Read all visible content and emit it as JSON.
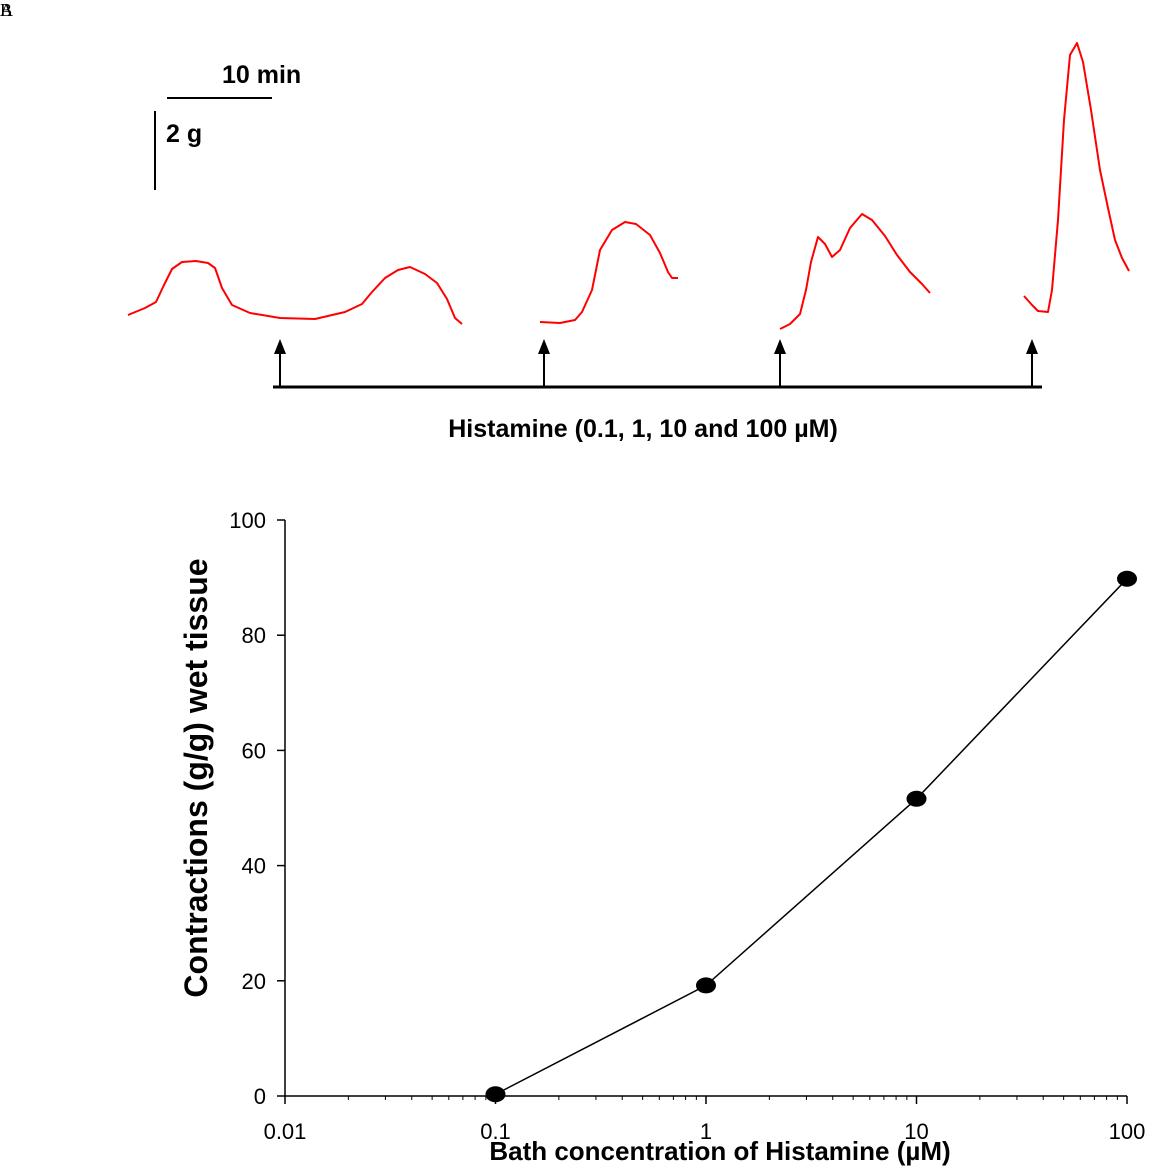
{
  "panels": {
    "a": "A",
    "b": "B"
  },
  "panel_a": {
    "scale_time_label": "10 min",
    "scale_force_label": "2 g",
    "treatment_label": "Histamine (0.1, 1, 10 and 100 µM)",
    "trace_color": "#ff0000",
    "arrow_count": 4
  },
  "chart_data": {
    "type": "line",
    "title": "",
    "xlabel": "Bath concentration of Histamine (µM)",
    "ylabel": "Contractions (g/g) wet tissue",
    "x_scale": "log",
    "xlim": [
      0.01,
      100
    ],
    "ylim": [
      0,
      100
    ],
    "x_ticks": [
      0.01,
      0.1,
      1,
      10,
      100
    ],
    "x_tick_labels": [
      "0.01",
      "0.1",
      "1",
      "10",
      "100"
    ],
    "y_ticks": [
      0,
      20,
      40,
      60,
      80,
      100
    ],
    "y_tick_labels": [
      "0",
      "20",
      "40",
      "60",
      "80",
      "100"
    ],
    "grid": false,
    "series": [
      {
        "x": [
          0.1,
          1,
          10,
          100
        ],
        "y": [
          0.3,
          19.2,
          51.6,
          89.8
        ],
        "marker": "filled-circle",
        "color": "#000000"
      }
    ]
  }
}
